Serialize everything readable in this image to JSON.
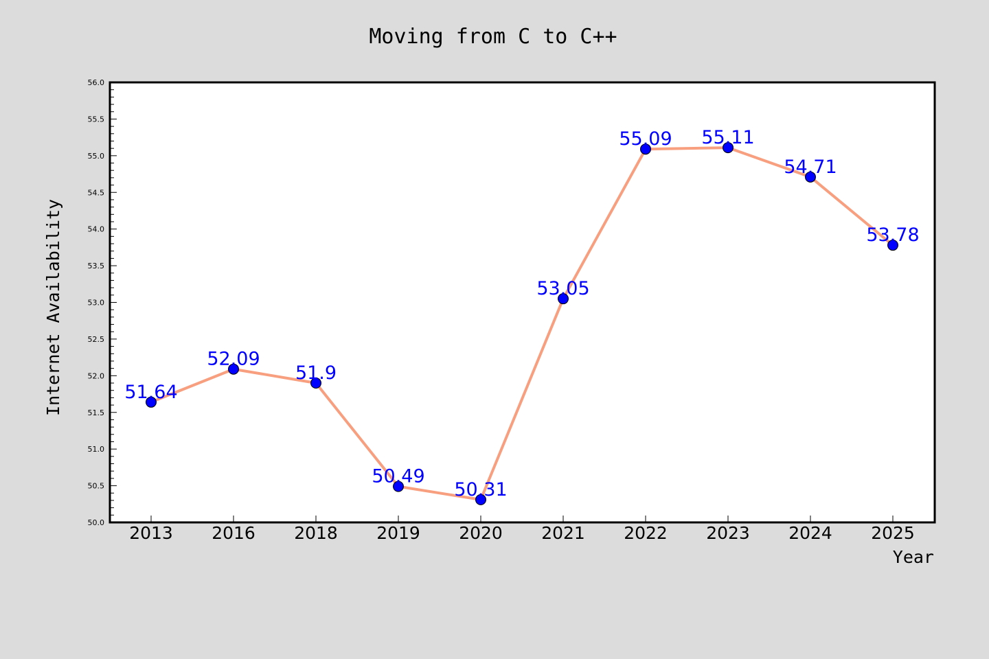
{
  "colors": {
    "background": "#dcdcdc",
    "plot_background": "#ffffff",
    "line": "#f79f7f",
    "marker": "#0000ff",
    "label": "#0000ff",
    "axis": "#000000"
  },
  "chart_data": {
    "type": "line",
    "title": "Moving from C to C++",
    "xlabel": "Year",
    "ylabel": "Internet Availability",
    "categories": [
      "2013",
      "2016",
      "2018",
      "2019",
      "2020",
      "2021",
      "2022",
      "2023",
      "2024",
      "2025"
    ],
    "series": [
      {
        "values": [
          51.64,
          52.09,
          51.9,
          50.49,
          50.31,
          53.05,
          55.09,
          55.11,
          54.71,
          53.78
        ],
        "data_labels": [
          "51.64",
          "52.09",
          "51.9",
          "50.49",
          "50.31",
          "53.05",
          "55.09",
          "55.11",
          "54.71",
          "53.78"
        ]
      }
    ],
    "ylim": [
      50.0,
      56.0
    ],
    "yticks": [
      "50.0",
      "50.5",
      "51.0",
      "51.5",
      "52.0",
      "52.5",
      "53.0",
      "53.5",
      "54.0",
      "54.5",
      "55.0",
      "55.5",
      "56.0"
    ],
    "y_minor_step": 0.1,
    "grid": false,
    "legend": "none"
  }
}
